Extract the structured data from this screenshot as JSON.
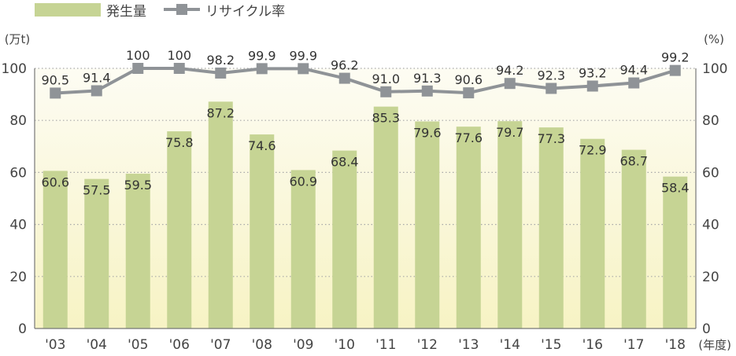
{
  "chart_data": {
    "type": "bar",
    "categories": [
      "'03",
      "'04",
      "'05",
      "'06",
      "'07",
      "'08",
      "'09",
      "'10",
      "'11",
      "'12",
      "'13",
      "'14",
      "'15",
      "'16",
      "'17",
      "'18"
    ],
    "series": [
      {
        "name": "発生量",
        "type": "bar",
        "axis": "left",
        "color": "#c6d494",
        "values": [
          60.6,
          57.5,
          59.5,
          75.8,
          87.2,
          74.6,
          60.9,
          68.4,
          85.3,
          79.6,
          77.6,
          79.7,
          77.3,
          72.9,
          68.7,
          58.4
        ],
        "labels": [
          "60.6",
          "57.5",
          "59.5",
          "75.8",
          "87.2",
          "74.6",
          "60.9",
          "68.4",
          "85.3",
          "79.6",
          "77.6",
          "79.7",
          "77.3",
          "72.9",
          "68.7",
          "58.4"
        ]
      },
      {
        "name": "リサイクル率",
        "type": "line",
        "axis": "right",
        "color": "#8f9397",
        "values": [
          90.5,
          91.4,
          100,
          100,
          98.2,
          99.9,
          99.9,
          96.2,
          91.0,
          91.3,
          90.6,
          94.2,
          92.3,
          93.2,
          94.4,
          99.2
        ],
        "labels": [
          "90.5",
          "91.4",
          "100",
          "100",
          "98.2",
          "99.9",
          "99.9",
          "96.2",
          "91.0",
          "91.3",
          "90.6",
          "94.2",
          "92.3",
          "93.2",
          "94.4",
          "99.2"
        ]
      }
    ],
    "ylim": [
      0,
      100
    ],
    "y2lim": [
      0,
      100
    ],
    "yticks": [
      "0",
      "20",
      "40",
      "60",
      "80",
      "100"
    ],
    "y2ticks": [
      "0",
      "20",
      "40",
      "60",
      "80",
      "100"
    ],
    "y_unit": "(万t)",
    "y2_unit": "(%)",
    "x_unit": "(年度)",
    "grid": "dotted",
    "legend_position": "top-left"
  }
}
